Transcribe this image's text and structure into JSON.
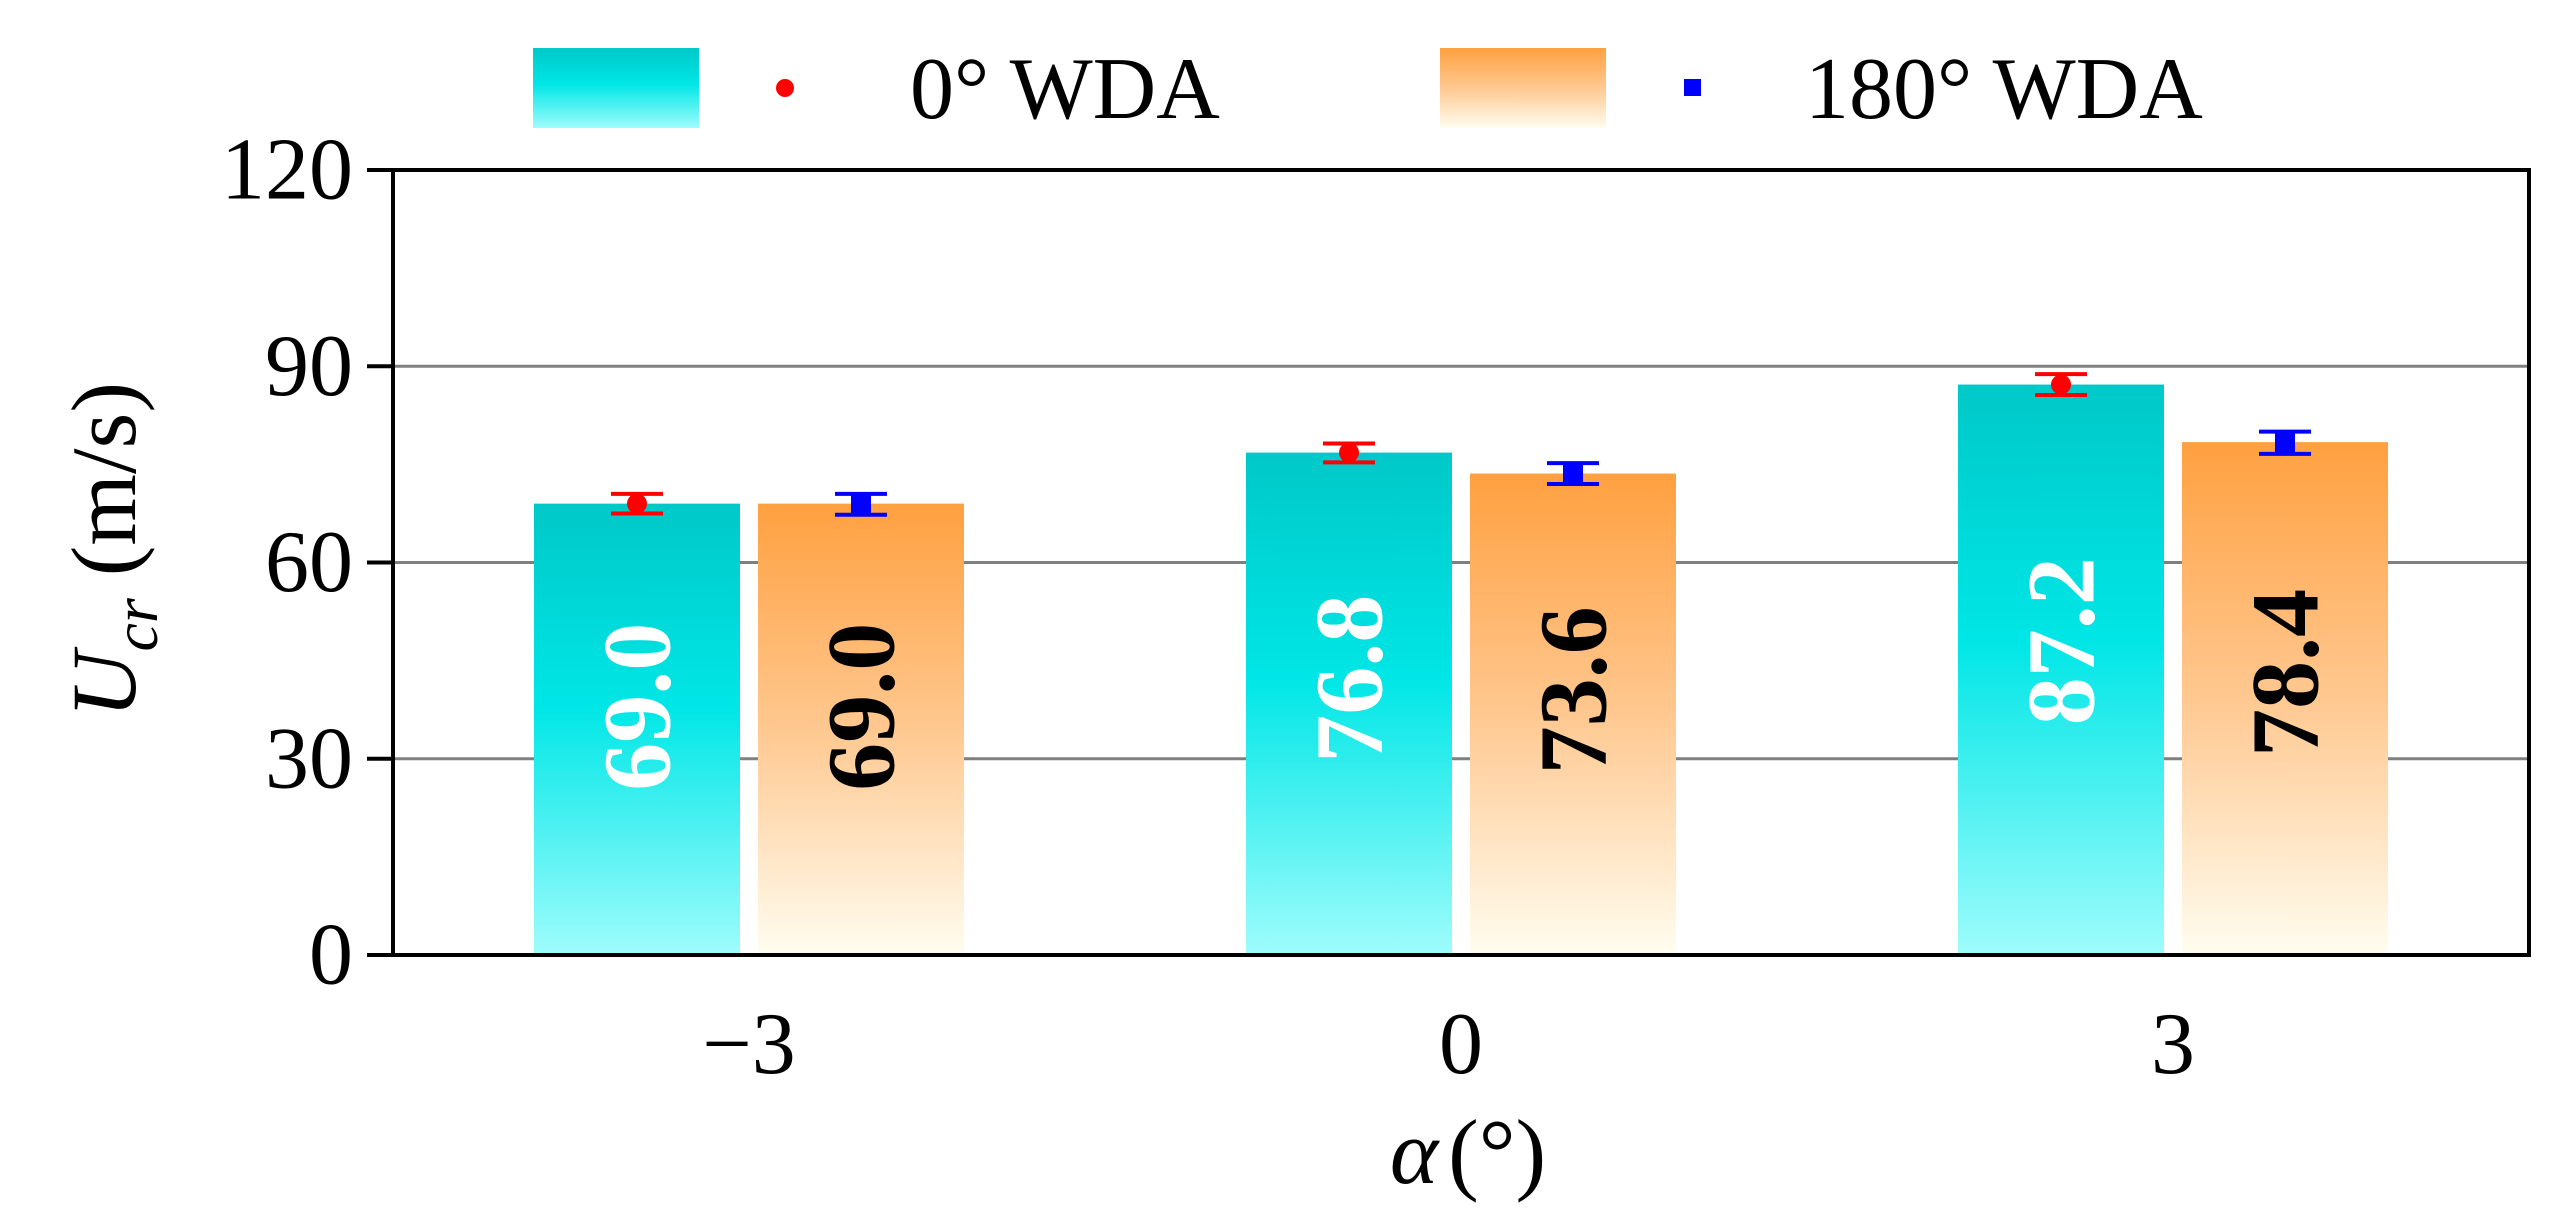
{
  "chart_data": {
    "type": "bar",
    "title": "",
    "categories": [
      "−3",
      "0",
      "3"
    ],
    "xlabel": "α (°)",
    "xlabel_symbol": "α",
    "xlabel_unit": "(°)",
    "ylabel": "Ucr (m/s)",
    "ylabel_symbol": "U",
    "ylabel_subscript": "cr",
    "ylabel_unit": "(m/s)",
    "ylim": [
      0,
      120
    ],
    "yticks": [
      0,
      30,
      60,
      90,
      120
    ],
    "grid": true,
    "legend_position": "top",
    "series": [
      {
        "name": "0° WDA",
        "values": [
          69.0,
          76.8,
          87.2
        ],
        "labels": [
          "69.0",
          "76.8",
          "87.2"
        ],
        "error_mean": [
          69.0,
          76.8,
          87.2
        ],
        "error_low": [
          67.5,
          75.3,
          85.6
        ],
        "error_high": [
          70.5,
          78.2,
          88.8
        ],
        "color_top": "#00c8c8",
        "color_bottom": "#8ffafa",
        "marker_color": "#ff0000",
        "marker": "circle",
        "label_color": "#ffffff"
      },
      {
        "name": "180° WDA",
        "values": [
          69.0,
          73.6,
          78.4
        ],
        "labels": [
          "69.0",
          "73.6",
          "78.4"
        ],
        "error_mean": [
          69.0,
          73.6,
          78.4
        ],
        "error_low": [
          67.3,
          72.0,
          76.6
        ],
        "error_high": [
          70.5,
          75.2,
          80.0
        ],
        "color_top": "#ffa040",
        "color_bottom": "#fffcec",
        "marker_color": "#0000ff",
        "marker": "square",
        "label_color": "#000000"
      }
    ]
  }
}
